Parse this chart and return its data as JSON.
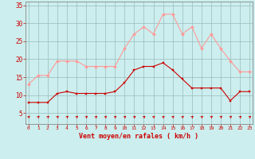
{
  "hours": [
    0,
    1,
    2,
    3,
    4,
    5,
    6,
    7,
    8,
    9,
    10,
    11,
    12,
    13,
    14,
    15,
    16,
    17,
    18,
    19,
    20,
    21,
    22,
    23
  ],
  "wind_avg": [
    8,
    8,
    8,
    10.5,
    11,
    10.5,
    10.5,
    10.5,
    10.5,
    11,
    13.5,
    17,
    18,
    18,
    19,
    17,
    14.5,
    12,
    12,
    12,
    12,
    8.5,
    11,
    11
  ],
  "wind_gust": [
    13,
    15.5,
    15.5,
    19.5,
    19.5,
    19.5,
    18,
    18,
    18,
    18,
    23,
    27,
    29,
    27,
    32.5,
    32.5,
    27,
    29,
    23,
    27,
    23,
    19.5,
    16.5,
    16.5
  ],
  "avg_color": "#cc0000",
  "gust_color": "#ff9999",
  "bg_color": "#cceeee",
  "grid_color": "#99bbbb",
  "xlabel": "Vent moyen/en rafales ( km/h )",
  "ylabel_ticks": [
    5,
    10,
    15,
    20,
    25,
    30,
    35
  ],
  "ylim": [
    2,
    36
  ],
  "xlim": [
    -0.3,
    23.3
  ],
  "tick_color": "#cc0000",
  "label_color": "#cc0000",
  "spine_color": "#888888"
}
